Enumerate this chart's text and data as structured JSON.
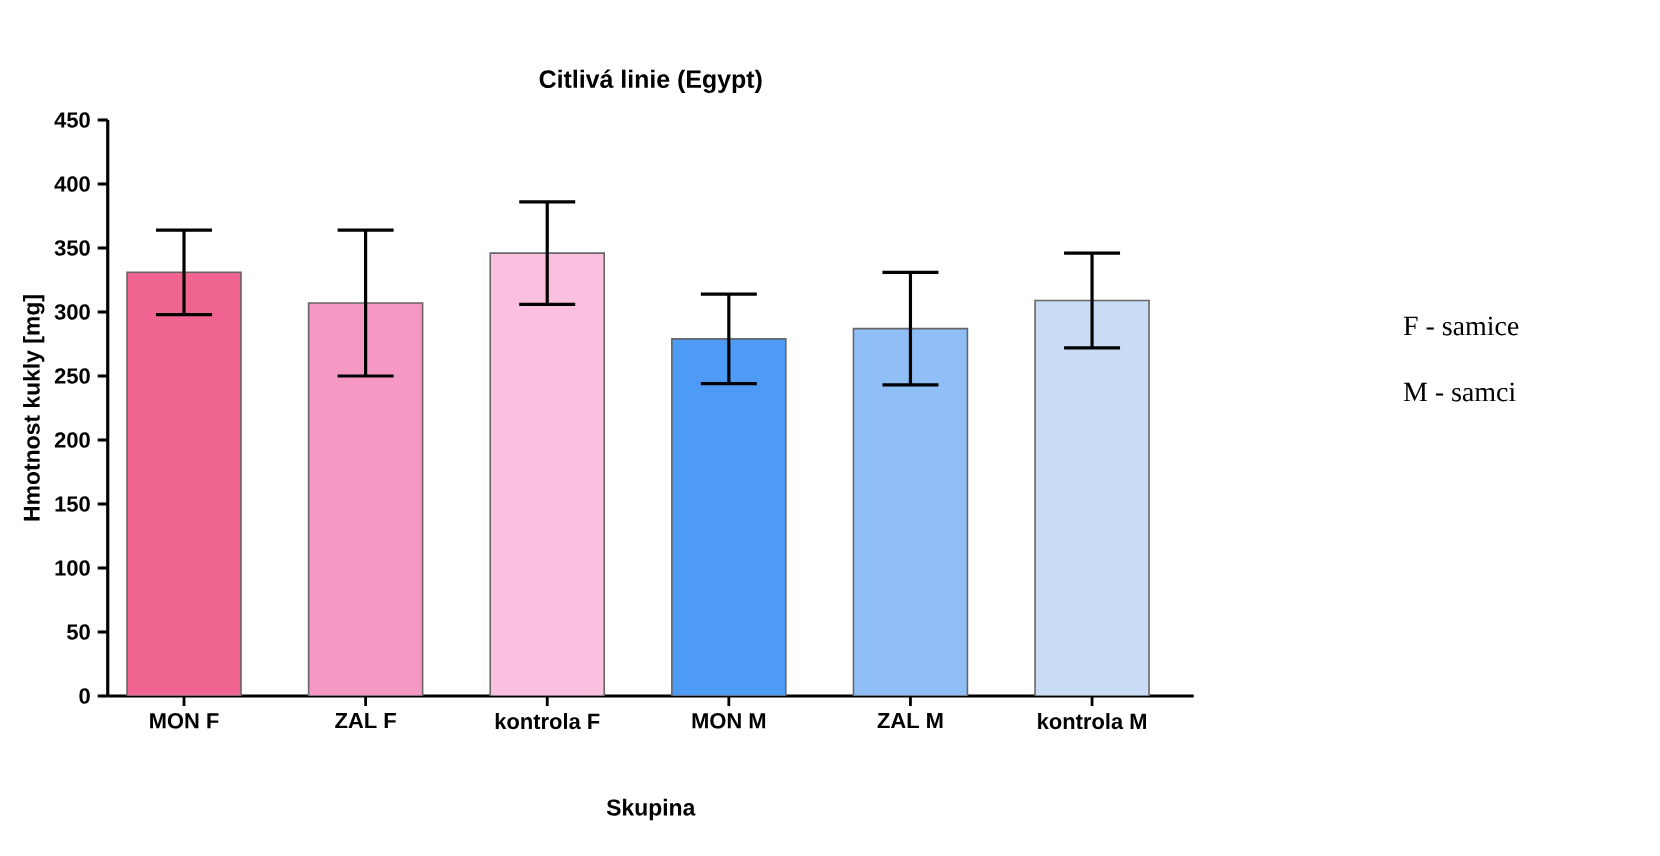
{
  "chart_data": {
    "type": "bar",
    "title": "Citlivá linie (Egypt)",
    "xlabel": "Skupina",
    "ylabel": "Hmotnost kukly [mg]",
    "categories": [
      "MON F",
      "ZAL F",
      "kontrola F",
      "MON M",
      "ZAL M",
      "kontrola M"
    ],
    "values": [
      331,
      307,
      346,
      279,
      287,
      309
    ],
    "errors": [
      33,
      57,
      40,
      35,
      44,
      37
    ],
    "colors": [
      "#f06590",
      "#f598c4",
      "#fbbfdf",
      "#4d9bf5",
      "#90bef7",
      "#c8dcf5"
    ],
    "ylim": [
      0,
      450
    ],
    "yticks": [
      0,
      50,
      100,
      150,
      200,
      250,
      300,
      350,
      400,
      450
    ],
    "annotations": [
      "F - samice",
      "M - samci"
    ]
  }
}
